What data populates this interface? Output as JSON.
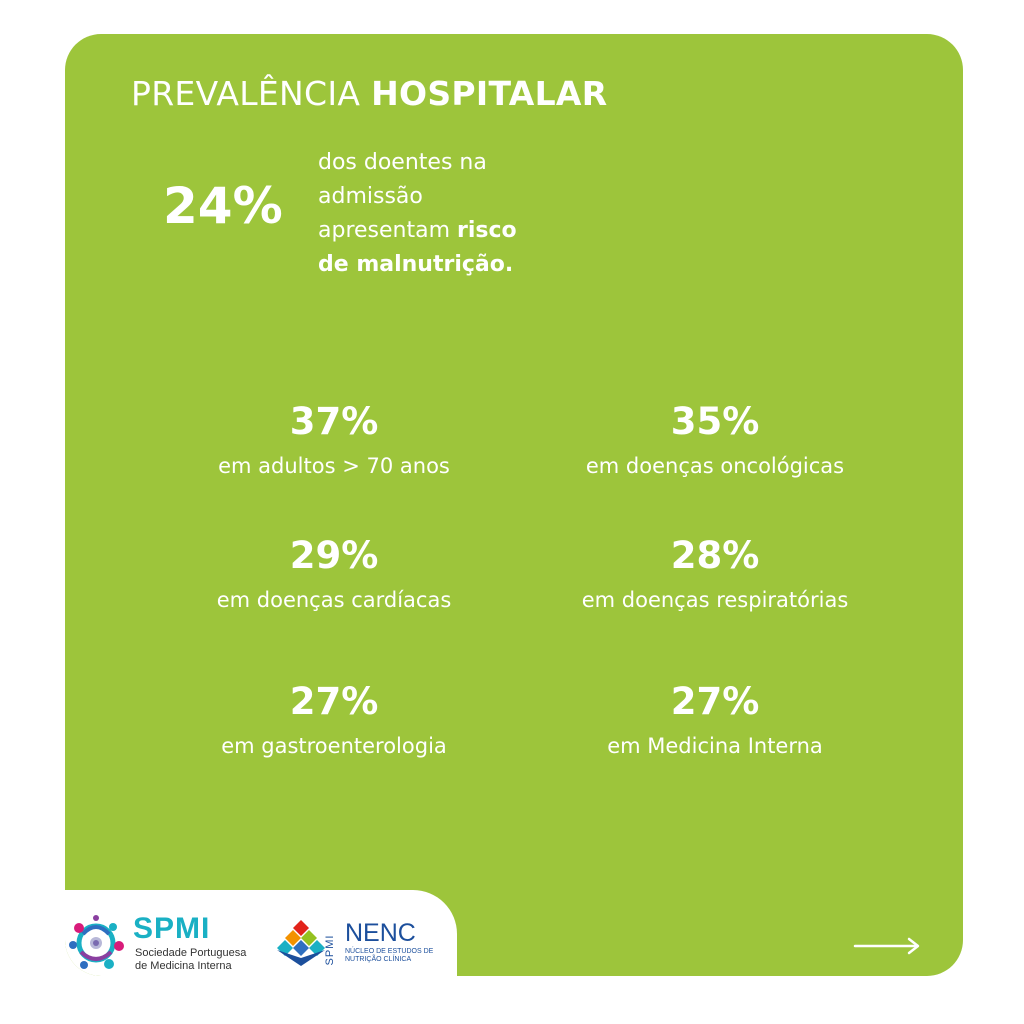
{
  "title": {
    "light": "PREVALÊNCIA",
    "bold": "HOSPITALAR"
  },
  "headline": {
    "value": "24%",
    "line1": "dos doentes na",
    "line2": "admissão",
    "line3_normal": "apresentam",
    "line3_bold": "risco",
    "line4_bold": "de malnutrição."
  },
  "stats": [
    {
      "value": "37%",
      "label": "em adultos > 70 anos"
    },
    {
      "value": "35%",
      "label": "em doenças oncológicas"
    },
    {
      "value": "29%",
      "label": "em doenças cardíacas"
    },
    {
      "value": "28%",
      "label": "em doenças respiratórias"
    },
    {
      "value": "27%",
      "label": "em gastroenterologia"
    },
    {
      "value": "27%",
      "label": "em Medicina Interna"
    }
  ],
  "logos": {
    "spmi": {
      "name": "SPMI",
      "sub1": "Sociedade Portuguesa",
      "sub2": "de Medicina Interna"
    },
    "nenc": {
      "vertical": "SPMI",
      "name": "NENC",
      "sub1": "NÚCLEO DE ESTUDOS DE",
      "sub2": "NUTRIÇÃO CLÍNICA"
    }
  },
  "colors": {
    "background": "#9dc53b",
    "text": "#ffffff",
    "spmi_teal": "#1ab0c4",
    "nenc_blue": "#1c4f9c"
  },
  "icons": {
    "next": "arrow-right-icon"
  }
}
